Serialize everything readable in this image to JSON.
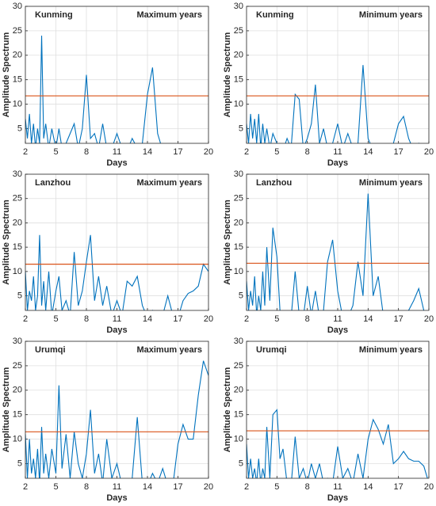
{
  "chart_data": [
    {
      "type": "line",
      "title": "Kunming",
      "subtitle": "Maximum years",
      "xlabel": "Days",
      "ylabel": "Amplitude Spectrum",
      "x": [
        2,
        2.2,
        2.4,
        2.6,
        2.8,
        3,
        3.2,
        3.4,
        3.6,
        3.8,
        4,
        4.3,
        4.6,
        5,
        5.3,
        5.6,
        6,
        6.4,
        6.8,
        7.2,
        7.6,
        8,
        8.4,
        8.8,
        9.2,
        9.6,
        10,
        10.5,
        11,
        11.5,
        12,
        12.5,
        13,
        13.5,
        14,
        14.5,
        15,
        15.5,
        16,
        16.5,
        17,
        17.5,
        18,
        18.5,
        19,
        19.5,
        20
      ],
      "values": [
        7,
        3,
        8,
        2,
        6,
        1,
        5,
        2,
        24,
        3,
        6,
        1,
        5,
        1,
        5,
        1,
        2,
        4,
        6,
        1,
        5,
        16,
        3,
        4,
        1,
        6,
        1,
        1,
        4,
        1,
        0.5,
        3,
        1,
        2,
        12,
        17.5,
        4,
        0.5,
        0.3,
        0.2,
        0.2,
        0.2,
        0.2,
        0.2,
        0.2,
        0.2,
        0.2
      ],
      "color": "#0072bd",
      "threshold": 11.7,
      "threshold_color": "#d95319",
      "xlim": [
        2,
        20
      ],
      "xticks": [
        2,
        5,
        8,
        11,
        14,
        17,
        20
      ],
      "ylim": [
        2,
        30
      ],
      "yticks": [
        5,
        10,
        15,
        20,
        25,
        30
      ],
      "grid": true
    },
    {
      "type": "line",
      "title": "Kunming",
      "subtitle": "Minimum years",
      "xlabel": "Days",
      "ylabel": "Amplitude Spectrum",
      "x": [
        2,
        2.2,
        2.4,
        2.6,
        2.8,
        3,
        3.2,
        3.4,
        3.6,
        3.8,
        4,
        4.3,
        4.6,
        5,
        5.3,
        5.6,
        6,
        6.4,
        6.8,
        7.2,
        7.6,
        8,
        8.4,
        8.8,
        9.2,
        9.6,
        10,
        10.5,
        11,
        11.5,
        12,
        12.5,
        13,
        13.5,
        14,
        14.5,
        15,
        15.5,
        16,
        16.5,
        17,
        17.5,
        18,
        18.5,
        19,
        19.5,
        20
      ],
      "values": [
        6,
        2,
        8,
        3,
        7,
        2,
        8,
        1,
        6,
        2,
        5,
        1,
        4,
        2,
        1,
        0.5,
        3,
        1,
        12,
        11,
        1,
        3,
        6,
        14,
        2,
        5,
        1,
        2,
        6,
        1,
        4,
        1,
        2,
        18,
        3,
        0.5,
        0.3,
        0.3,
        0.5,
        2,
        6,
        7.5,
        3,
        0.5,
        2,
        0.5,
        0.3
      ],
      "color": "#0072bd",
      "threshold": 11.7,
      "threshold_color": "#d95319",
      "xlim": [
        2,
        20
      ],
      "xticks": [
        2,
        5,
        8,
        11,
        14,
        17,
        20
      ],
      "ylim": [
        2,
        30
      ],
      "yticks": [
        5,
        10,
        15,
        20,
        25,
        30
      ],
      "grid": true
    },
    {
      "type": "line",
      "title": "Lanzhou",
      "subtitle": "Maximum years",
      "xlabel": "Days",
      "ylabel": "Amplitude Spectrum",
      "x": [
        2,
        2.2,
        2.4,
        2.6,
        2.8,
        3,
        3.2,
        3.4,
        3.6,
        3.8,
        4,
        4.3,
        4.6,
        5,
        5.3,
        5.6,
        6,
        6.4,
        6.8,
        7.2,
        7.6,
        8,
        8.4,
        8.8,
        9.2,
        9.6,
        10,
        10.5,
        11,
        11.5,
        12,
        12.5,
        13,
        13.5,
        14,
        14.5,
        15,
        15.5,
        16,
        16.5,
        17,
        17.5,
        18,
        18.5,
        19,
        19.5,
        20
      ],
      "values": [
        10,
        2,
        6,
        4,
        9,
        2,
        5,
        17.5,
        3,
        8,
        2,
        10,
        1,
        6,
        9,
        2,
        4,
        1,
        14,
        3,
        6,
        12,
        17.5,
        4,
        9,
        3,
        7,
        1,
        4,
        1,
        8,
        7,
        9,
        3,
        0.5,
        2,
        0.5,
        1,
        5,
        1,
        0.5,
        4,
        5.5,
        6,
        7,
        11.5,
        10
      ],
      "color": "#0072bd",
      "threshold": 11.5,
      "threshold_color": "#d95319",
      "xlim": [
        2,
        20
      ],
      "xticks": [
        2,
        5,
        8,
        11,
        14,
        17,
        20
      ],
      "ylim": [
        2,
        30
      ],
      "yticks": [
        5,
        10,
        15,
        20,
        25,
        30
      ],
      "grid": true
    },
    {
      "type": "line",
      "title": "Lanzhou",
      "subtitle": "Minimum years",
      "xlabel": "Days",
      "ylabel": "Amplitude Spectrum",
      "x": [
        2,
        2.2,
        2.4,
        2.6,
        2.8,
        3,
        3.2,
        3.4,
        3.6,
        3.8,
        4,
        4.3,
        4.6,
        5,
        5.3,
        5.6,
        6,
        6.4,
        6.8,
        7.2,
        7.6,
        8,
        8.4,
        8.8,
        9.2,
        9.6,
        10,
        10.5,
        11,
        11.5,
        12,
        12.5,
        13,
        13.5,
        14,
        14.5,
        15,
        15.5,
        16,
        16.5,
        17,
        17.5,
        18,
        18.5,
        19,
        19.5,
        20
      ],
      "values": [
        8,
        2,
        6,
        3,
        9,
        1,
        5,
        2,
        10,
        3,
        15,
        4,
        19,
        13,
        2,
        0.5,
        1,
        0.5,
        10,
        1,
        0.5,
        7,
        1,
        6,
        0.5,
        2,
        12,
        16.5,
        6,
        0.5,
        0.5,
        3,
        12,
        5,
        26,
        5,
        9,
        1,
        0.3,
        0.3,
        0.3,
        0.5,
        2,
        4,
        6.5,
        2,
        0.3
      ],
      "color": "#0072bd",
      "threshold": 11.7,
      "threshold_color": "#d95319",
      "xlim": [
        2,
        20
      ],
      "xticks": [
        2,
        5,
        8,
        11,
        14,
        17,
        20
      ],
      "ylim": [
        2,
        30
      ],
      "yticks": [
        5,
        10,
        15,
        20,
        25,
        30
      ],
      "grid": true
    },
    {
      "type": "line",
      "title": "Urumqi",
      "subtitle": "Maximum years",
      "xlabel": "Days",
      "ylabel": "Amplitude Spectrum",
      "x": [
        2,
        2.2,
        2.4,
        2.6,
        2.8,
        3,
        3.2,
        3.4,
        3.6,
        3.8,
        4,
        4.3,
        4.6,
        5,
        5.3,
        5.6,
        6,
        6.4,
        6.8,
        7.2,
        7.6,
        8,
        8.4,
        8.8,
        9.2,
        9.6,
        10,
        10.5,
        11,
        11.5,
        12,
        12.5,
        13,
        13.5,
        14,
        14.5,
        15,
        15.5,
        16,
        16.5,
        17,
        17.5,
        18,
        18.5,
        19,
        19.5,
        20
      ],
      "values": [
        11,
        2,
        10,
        3,
        6,
        2,
        8,
        1,
        12.5,
        3,
        7,
        2,
        8,
        3,
        21,
        4,
        11,
        2,
        11.5,
        5,
        2,
        7,
        16,
        3,
        7,
        1,
        10,
        2,
        5,
        0.5,
        0.5,
        2,
        14.5,
        1,
        0.5,
        3,
        1,
        4,
        0.5,
        0.5,
        9,
        13,
        10,
        10,
        19,
        26,
        23
      ],
      "color": "#0072bd",
      "threshold": 11.5,
      "threshold_color": "#d95319",
      "xlim": [
        2,
        20
      ],
      "xticks": [
        2,
        5,
        8,
        11,
        14,
        17,
        20
      ],
      "ylim": [
        2,
        30
      ],
      "yticks": [
        5,
        10,
        15,
        20,
        25,
        30
      ],
      "grid": true
    },
    {
      "type": "line",
      "title": "Urumqi",
      "subtitle": "Minimum years",
      "xlabel": "Days",
      "ylabel": "Amplitude Spectrum",
      "x": [
        2,
        2.2,
        2.4,
        2.6,
        2.8,
        3,
        3.2,
        3.4,
        3.6,
        3.8,
        4,
        4.3,
        4.6,
        5,
        5.3,
        5.6,
        6,
        6.4,
        6.8,
        7.2,
        7.6,
        8,
        8.4,
        8.8,
        9.2,
        9.6,
        10,
        10.5,
        11,
        11.5,
        12,
        12.5,
        13,
        13.5,
        14,
        14.5,
        15,
        15.5,
        16,
        16.5,
        17,
        17.5,
        18,
        18.5,
        19,
        19.5,
        20
      ],
      "values": [
        9,
        2,
        6,
        2,
        4,
        1,
        6,
        1,
        4,
        2,
        12.5,
        2,
        15,
        16,
        6,
        8,
        1,
        0.5,
        10.5,
        2,
        4,
        1,
        5,
        2,
        5,
        1,
        2,
        1,
        8.5,
        2,
        4,
        1,
        7,
        2,
        10,
        14,
        12,
        9,
        13,
        5,
        6,
        7.5,
        6,
        5.5,
        5.5,
        4.5,
        1
      ],
      "color": "#0072bd",
      "threshold": 11.7,
      "threshold_color": "#d95319",
      "xlim": [
        2,
        20
      ],
      "xticks": [
        2,
        5,
        8,
        11,
        14,
        17,
        20
      ],
      "ylim": [
        2,
        30
      ],
      "yticks": [
        5,
        10,
        15,
        20,
        25,
        30
      ],
      "grid": true
    }
  ]
}
